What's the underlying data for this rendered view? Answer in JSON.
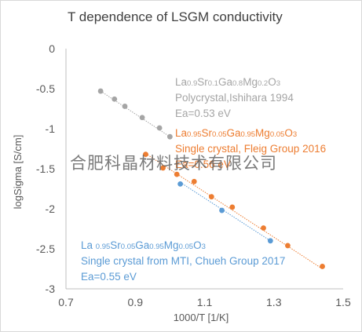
{
  "colors": {
    "gray": "#a5a5a5",
    "orange": "#ed7d31",
    "blue": "#5b9bd5",
    "gray_text": "#595959",
    "axis_line": "#bfbfbf"
  },
  "watermark": "合肥科晶材料技术有限公司",
  "chart_data": {
    "type": "scatter",
    "title": "T dependence of LSGM conductivity",
    "xlabel": "1000/T [1/K]",
    "ylabel": "logSigma [S/cm]",
    "xlim": [
      0.7,
      1.5
    ],
    "ylim": [
      -3,
      0
    ],
    "x_ticks": [
      0.7,
      0.9,
      1.1,
      1.3,
      1.5
    ],
    "x_tick_labels": [
      "0.7",
      "0.9",
      "1.1",
      "1.3",
      "1.5"
    ],
    "y_ticks": [
      0,
      -0.5,
      -1,
      -1.5,
      -2,
      -2.5,
      -3
    ],
    "y_tick_labels": [
      "0",
      "-0.5",
      "-1",
      "-1.5",
      "-2",
      "-2.5",
      "-3"
    ],
    "grid": false,
    "series": [
      {
        "color_key": "gray",
        "x": [
          0.8,
          0.84,
          0.87,
          0.92,
          0.97,
          1.0
        ],
        "y": [
          -0.53,
          -0.63,
          -0.72,
          -0.86,
          -0.99,
          -1.1
        ],
        "trendline": [
          [
            0.8,
            -0.53
          ],
          [
            1.0,
            -1.1
          ]
        ]
      },
      {
        "color_key": "orange",
        "x": [
          0.93,
          0.98,
          1.02,
          1.07,
          1.12,
          1.18,
          1.27,
          1.34,
          1.44
        ],
        "y": [
          -1.32,
          -1.49,
          -1.57,
          -1.66,
          -1.85,
          -1.98,
          -2.24,
          -2.46,
          -2.72
        ],
        "trendline": [
          [
            0.93,
            -1.31
          ],
          [
            1.44,
            -2.75
          ]
        ]
      },
      {
        "color_key": "blue",
        "x": [
          1.03,
          1.15,
          1.29
        ],
        "y": [
          -1.69,
          -2.02,
          -2.4
        ],
        "trendline": [
          [
            1.03,
            -1.67
          ],
          [
            1.29,
            -2.4
          ]
        ]
      }
    ],
    "annotations": [
      {
        "color_key": "gray",
        "formula": [
          {
            "t": "La",
            "sub": false
          },
          {
            "t": "0.9",
            "sub": true
          },
          {
            "t": "Sr",
            "sub": false
          },
          {
            "t": "0.1",
            "sub": true
          },
          {
            "t": "Ga",
            "sub": false
          },
          {
            "t": "0.8",
            "sub": true
          },
          {
            "t": "Mg",
            "sub": false
          },
          {
            "t": "0.2",
            "sub": true
          },
          {
            "t": "O",
            "sub": false
          },
          {
            "t": "3",
            "sub": true
          }
        ],
        "line2": "Polycrystal,Ishihara 1994",
        "line3": "Ea=0.53 eV"
      },
      {
        "color_key": "orange",
        "formula": [
          {
            "t": "La",
            "sub": false
          },
          {
            "t": "0.95",
            "sub": true
          },
          {
            "t": "Sr",
            "sub": false
          },
          {
            "t": "0.05",
            "sub": true
          },
          {
            "t": "Ga",
            "sub": false
          },
          {
            "t": "0.95",
            "sub": true
          },
          {
            "t": "Mg",
            "sub": false
          },
          {
            "t": "0.05",
            "sub": true
          },
          {
            "t": "O",
            "sub": false
          },
          {
            "t": "3",
            "sub": true
          }
        ],
        "line2": "Single crystal, Fleig Group 2016",
        "line3": "Ea=0.56 eV"
      },
      {
        "color_key": "blue",
        "formula": [
          {
            "t": "La ",
            "sub": false
          },
          {
            "t": "0.95",
            "sub": true
          },
          {
            "t": "Sr",
            "sub": false
          },
          {
            "t": "0.05",
            "sub": true
          },
          {
            "t": "Ga",
            "sub": false
          },
          {
            "t": "0.95",
            "sub": true
          },
          {
            "t": "Mg",
            "sub": false
          },
          {
            "t": "0.05",
            "sub": true
          },
          {
            "t": "O",
            "sub": false
          },
          {
            "t": "3",
            "sub": true
          }
        ],
        "line2": "Single crystal from MTI, Chueh Group 2017",
        "line3": "Ea=0.55 eV"
      }
    ]
  }
}
